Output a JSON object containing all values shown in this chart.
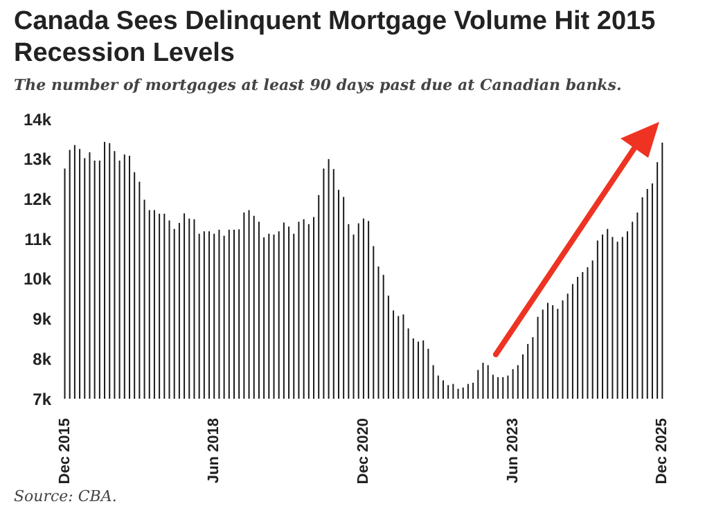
{
  "chart_data": {
    "type": "bar",
    "title": "Canada Sees Delinquent Mortgage Volume Hit 2015 Recession Levels",
    "subtitle": "The number of mortgages at least 90 days past due at Canadian banks.",
    "annotations": [
      "Source: CBA."
    ],
    "categories": [
      "Dec 2015",
      null,
      null,
      null,
      null,
      null,
      null,
      null,
      null,
      null,
      null,
      null,
      null,
      null,
      null,
      null,
      null,
      null,
      null,
      null,
      null,
      null,
      null,
      null,
      null,
      null,
      null,
      null,
      null,
      null,
      "Jun 2018",
      null,
      null,
      null,
      null,
      null,
      null,
      null,
      null,
      null,
      null,
      null,
      null,
      null,
      null,
      null,
      null,
      null,
      null,
      null,
      null,
      null,
      null,
      null,
      null,
      null,
      null,
      null,
      null,
      null,
      "Dec 2020",
      null,
      null,
      null,
      null,
      null,
      null,
      null,
      null,
      null,
      null,
      null,
      null,
      null,
      null,
      null,
      null,
      null,
      null,
      null,
      null,
      null,
      null,
      null,
      null,
      null,
      null,
      null,
      null,
      null,
      "Jun 2023",
      null,
      null,
      null,
      null,
      null,
      null,
      null,
      null,
      null,
      null,
      null,
      null,
      null,
      null,
      null,
      null,
      null,
      null,
      null,
      null,
      null,
      null,
      null,
      null,
      null,
      null,
      null,
      null,
      null,
      "Dec 2025"
    ],
    "values": [
      12760,
      13230,
      13350,
      13250,
      13020,
      13170,
      12960,
      12960,
      13430,
      13400,
      13200,
      12960,
      13110,
      13080,
      12670,
      12430,
      11980,
      11720,
      11720,
      11630,
      11630,
      11460,
      11250,
      11400,
      11640,
      11510,
      11490,
      11130,
      11190,
      11190,
      11130,
      11230,
      11080,
      11230,
      11230,
      11240,
      11660,
      11720,
      11580,
      11430,
      11040,
      11130,
      11110,
      11190,
      11410,
      11310,
      11130,
      11430,
      11490,
      11370,
      11550,
      12100,
      12760,
      13000,
      12750,
      12230,
      12050,
      11370,
      11110,
      11390,
      11510,
      11450,
      10820,
      10310,
      10100,
      9580,
      9210,
      9070,
      9110,
      8760,
      8510,
      8430,
      8460,
      8250,
      7840,
      7580,
      7460,
      7340,
      7370,
      7250,
      7280,
      7370,
      7400,
      7720,
      7900,
      7840,
      7600,
      7540,
      7540,
      7580,
      7740,
      7840,
      8110,
      8370,
      8540,
      9050,
      9230,
      9400,
      9340,
      9250,
      9460,
      9630,
      9870,
      10050,
      10170,
      10290,
      10460,
      10960,
      11110,
      11250,
      11050,
      10930,
      11050,
      11190,
      11430,
      11660,
      12040,
      12250,
      12390,
      12920,
      13410
    ],
    "color": "#1a1a1a",
    "ylim": [
      7000,
      14000
    ],
    "yticks": [
      {
        "value": 7000,
        "label": "7k"
      },
      {
        "value": 8000,
        "label": "8k"
      },
      {
        "value": 9000,
        "label": "9k"
      },
      {
        "value": 10000,
        "label": "10k"
      },
      {
        "value": 11000,
        "label": "11k"
      },
      {
        "value": 12000,
        "label": "12k"
      },
      {
        "value": 13000,
        "label": "13k"
      },
      {
        "value": 14000,
        "label": "14k"
      }
    ],
    "grid": false,
    "legend": false
  }
}
